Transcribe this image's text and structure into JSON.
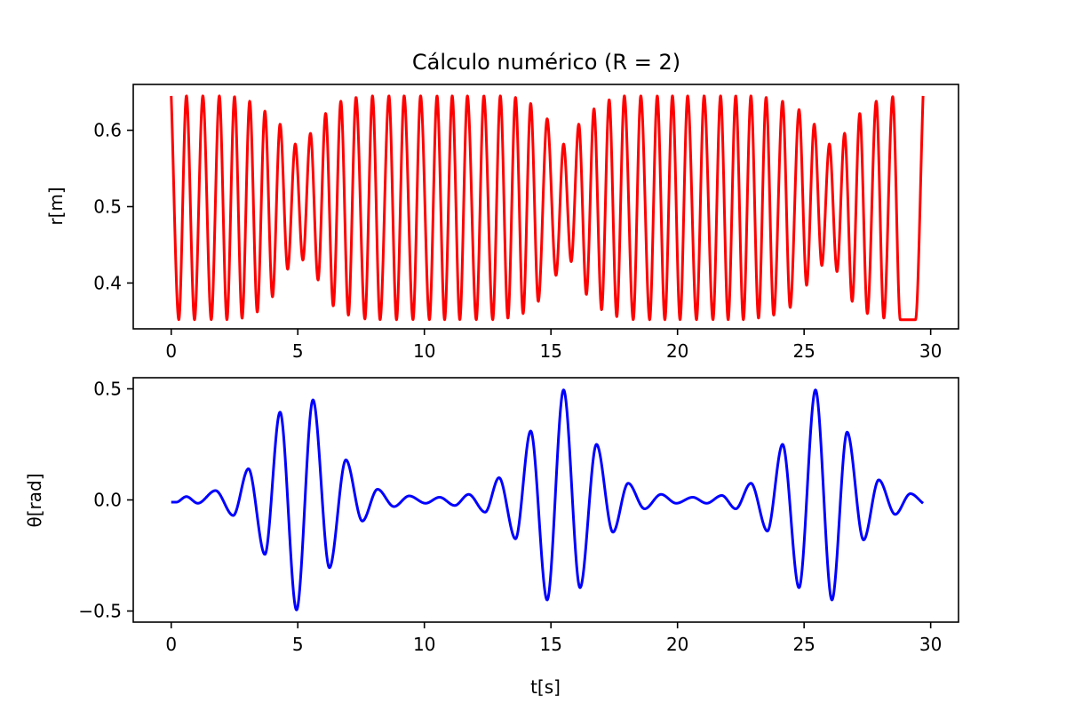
{
  "figure": {
    "title": "Cálculo numérico (R = 2)"
  },
  "chart_data": [
    {
      "type": "line",
      "title": "Cálculo numérico (R = 2)",
      "xlabel": "",
      "ylabel": "r[m]",
      "xlim": [
        -1.5,
        31.1
      ],
      "ylim": [
        0.34,
        0.66
      ],
      "xticks": [
        0,
        5,
        10,
        15,
        20,
        25,
        30
      ],
      "xtick_labels": [
        "0",
        "5",
        "10",
        "15",
        "20",
        "25",
        "30"
      ],
      "yticks": [
        0.4,
        0.5,
        0.6
      ],
      "ytick_labels": [
        "0.4",
        "0.5",
        "0.6"
      ],
      "grid": false,
      "series": [
        {
          "color": "#ff0000",
          "t_range": [
            0,
            29.7
          ],
          "maxima": [
            [
              0.0,
              0.645
            ],
            [
              0.6,
              0.645
            ],
            [
              1.25,
              0.645
            ],
            [
              1.9,
              0.645
            ],
            [
              2.5,
              0.644
            ],
            [
              3.1,
              0.638
            ],
            [
              3.7,
              0.625
            ],
            [
              4.3,
              0.608
            ],
            [
              4.9,
              0.582
            ],
            [
              5.5,
              0.596
            ],
            [
              6.1,
              0.622
            ],
            [
              6.7,
              0.638
            ],
            [
              7.3,
              0.643
            ],
            [
              7.95,
              0.645
            ],
            [
              8.6,
              0.645
            ],
            [
              9.2,
              0.645
            ],
            [
              9.85,
              0.645
            ],
            [
              10.5,
              0.645
            ],
            [
              11.1,
              0.645
            ],
            [
              11.7,
              0.645
            ],
            [
              12.35,
              0.645
            ],
            [
              13.0,
              0.645
            ],
            [
              13.6,
              0.643
            ],
            [
              14.2,
              0.635
            ],
            [
              14.85,
              0.615
            ],
            [
              15.5,
              0.582
            ],
            [
              16.1,
              0.608
            ],
            [
              16.7,
              0.628
            ],
            [
              17.3,
              0.64
            ],
            [
              17.9,
              0.645
            ],
            [
              18.55,
              0.645
            ],
            [
              19.2,
              0.645
            ],
            [
              19.8,
              0.645
            ],
            [
              20.4,
              0.645
            ],
            [
              21.05,
              0.645
            ],
            [
              21.7,
              0.645
            ],
            [
              22.3,
              0.645
            ],
            [
              22.9,
              0.645
            ],
            [
              23.5,
              0.643
            ],
            [
              24.15,
              0.638
            ],
            [
              24.8,
              0.627
            ],
            [
              25.4,
              0.608
            ],
            [
              26.0,
              0.582
            ],
            [
              26.6,
              0.596
            ],
            [
              27.2,
              0.622
            ],
            [
              27.85,
              0.638
            ],
            [
              28.5,
              0.644
            ],
            [
              29.7,
              0.645
            ]
          ],
          "minima": [
            [
              0.3,
              0.352
            ],
            [
              0.92,
              0.352
            ],
            [
              1.58,
              0.352
            ],
            [
              2.2,
              0.352
            ],
            [
              2.8,
              0.354
            ],
            [
              3.4,
              0.362
            ],
            [
              4.0,
              0.382
            ],
            [
              4.6,
              0.418
            ],
            [
              5.2,
              0.43
            ],
            [
              5.8,
              0.404
            ],
            [
              6.4,
              0.37
            ],
            [
              7.0,
              0.358
            ],
            [
              7.65,
              0.353
            ],
            [
              8.25,
              0.352
            ],
            [
              8.9,
              0.352
            ],
            [
              9.55,
              0.352
            ],
            [
              10.2,
              0.352
            ],
            [
              10.8,
              0.352
            ],
            [
              11.4,
              0.352
            ],
            [
              12.05,
              0.352
            ],
            [
              12.7,
              0.352
            ],
            [
              13.3,
              0.354
            ],
            [
              13.9,
              0.36
            ],
            [
              14.5,
              0.376
            ],
            [
              15.2,
              0.41
            ],
            [
              15.8,
              0.428
            ],
            [
              16.4,
              0.385
            ],
            [
              17.0,
              0.365
            ],
            [
              17.6,
              0.356
            ],
            [
              18.25,
              0.352
            ],
            [
              18.9,
              0.352
            ],
            [
              19.5,
              0.352
            ],
            [
              20.1,
              0.352
            ],
            [
              20.75,
              0.352
            ],
            [
              21.4,
              0.352
            ],
            [
              22.0,
              0.352
            ],
            [
              22.6,
              0.352
            ],
            [
              23.2,
              0.354
            ],
            [
              23.8,
              0.358
            ],
            [
              24.45,
              0.368
            ],
            [
              25.1,
              0.397
            ],
            [
              25.7,
              0.423
            ],
            [
              26.3,
              0.415
            ],
            [
              26.9,
              0.376
            ],
            [
              27.5,
              0.36
            ],
            [
              28.15,
              0.354
            ],
            [
              28.8,
              0.352
            ],
            [
              29.4,
              0.352
            ]
          ]
        }
      ]
    },
    {
      "type": "line",
      "title": "",
      "xlabel": "t[s]",
      "ylabel": "θ[rad]",
      "xlim": [
        -1.5,
        31.1
      ],
      "ylim": [
        -0.55,
        0.55
      ],
      "xticks": [
        0,
        5,
        10,
        15,
        20,
        25,
        30
      ],
      "xtick_labels": [
        "0",
        "5",
        "10",
        "15",
        "20",
        "25",
        "30"
      ],
      "yticks": [
        -0.5,
        0.0,
        0.5
      ],
      "ytick_labels": [
        "−0.5",
        "0.0",
        "0.5"
      ],
      "grid": false,
      "series": [
        {
          "color": "#0000ff",
          "points": [
            [
              0.0,
              -0.01
            ],
            [
              0.2,
              -0.01
            ],
            [
              0.6,
              0.015
            ],
            [
              1.05,
              -0.015
            ],
            [
              1.75,
              0.042
            ],
            [
              2.45,
              -0.07
            ],
            [
              3.05,
              0.14
            ],
            [
              3.7,
              -0.245
            ],
            [
              4.3,
              0.395
            ],
            [
              4.95,
              -0.495
            ],
            [
              5.6,
              0.45
            ],
            [
              6.25,
              -0.305
            ],
            [
              6.9,
              0.18
            ],
            [
              7.55,
              -0.095
            ],
            [
              8.15,
              0.048
            ],
            [
              8.8,
              -0.03
            ],
            [
              9.4,
              0.018
            ],
            [
              10.05,
              -0.015
            ],
            [
              10.6,
              0.012
            ],
            [
              11.2,
              -0.025
            ],
            [
              11.75,
              0.025
            ],
            [
              12.4,
              -0.055
            ],
            [
              12.95,
              0.1
            ],
            [
              13.6,
              -0.175
            ],
            [
              14.2,
              0.31
            ],
            [
              14.85,
              -0.45
            ],
            [
              15.5,
              0.495
            ],
            [
              16.15,
              -0.395
            ],
            [
              16.8,
              0.25
            ],
            [
              17.45,
              -0.145
            ],
            [
              18.05,
              0.075
            ],
            [
              18.7,
              -0.04
            ],
            [
              19.35,
              0.025
            ],
            [
              19.95,
              -0.015
            ],
            [
              20.6,
              0.012
            ],
            [
              21.15,
              -0.015
            ],
            [
              21.75,
              0.02
            ],
            [
              22.3,
              -0.04
            ],
            [
              22.9,
              0.075
            ],
            [
              23.55,
              -0.14
            ],
            [
              24.15,
              0.25
            ],
            [
              24.8,
              -0.395
            ],
            [
              25.45,
              0.495
            ],
            [
              26.1,
              -0.45
            ],
            [
              26.7,
              0.305
            ],
            [
              27.35,
              -0.18
            ],
            [
              27.95,
              0.09
            ],
            [
              28.6,
              -0.065
            ],
            [
              29.2,
              0.028
            ],
            [
              29.7,
              -0.015
            ]
          ]
        }
      ]
    }
  ]
}
